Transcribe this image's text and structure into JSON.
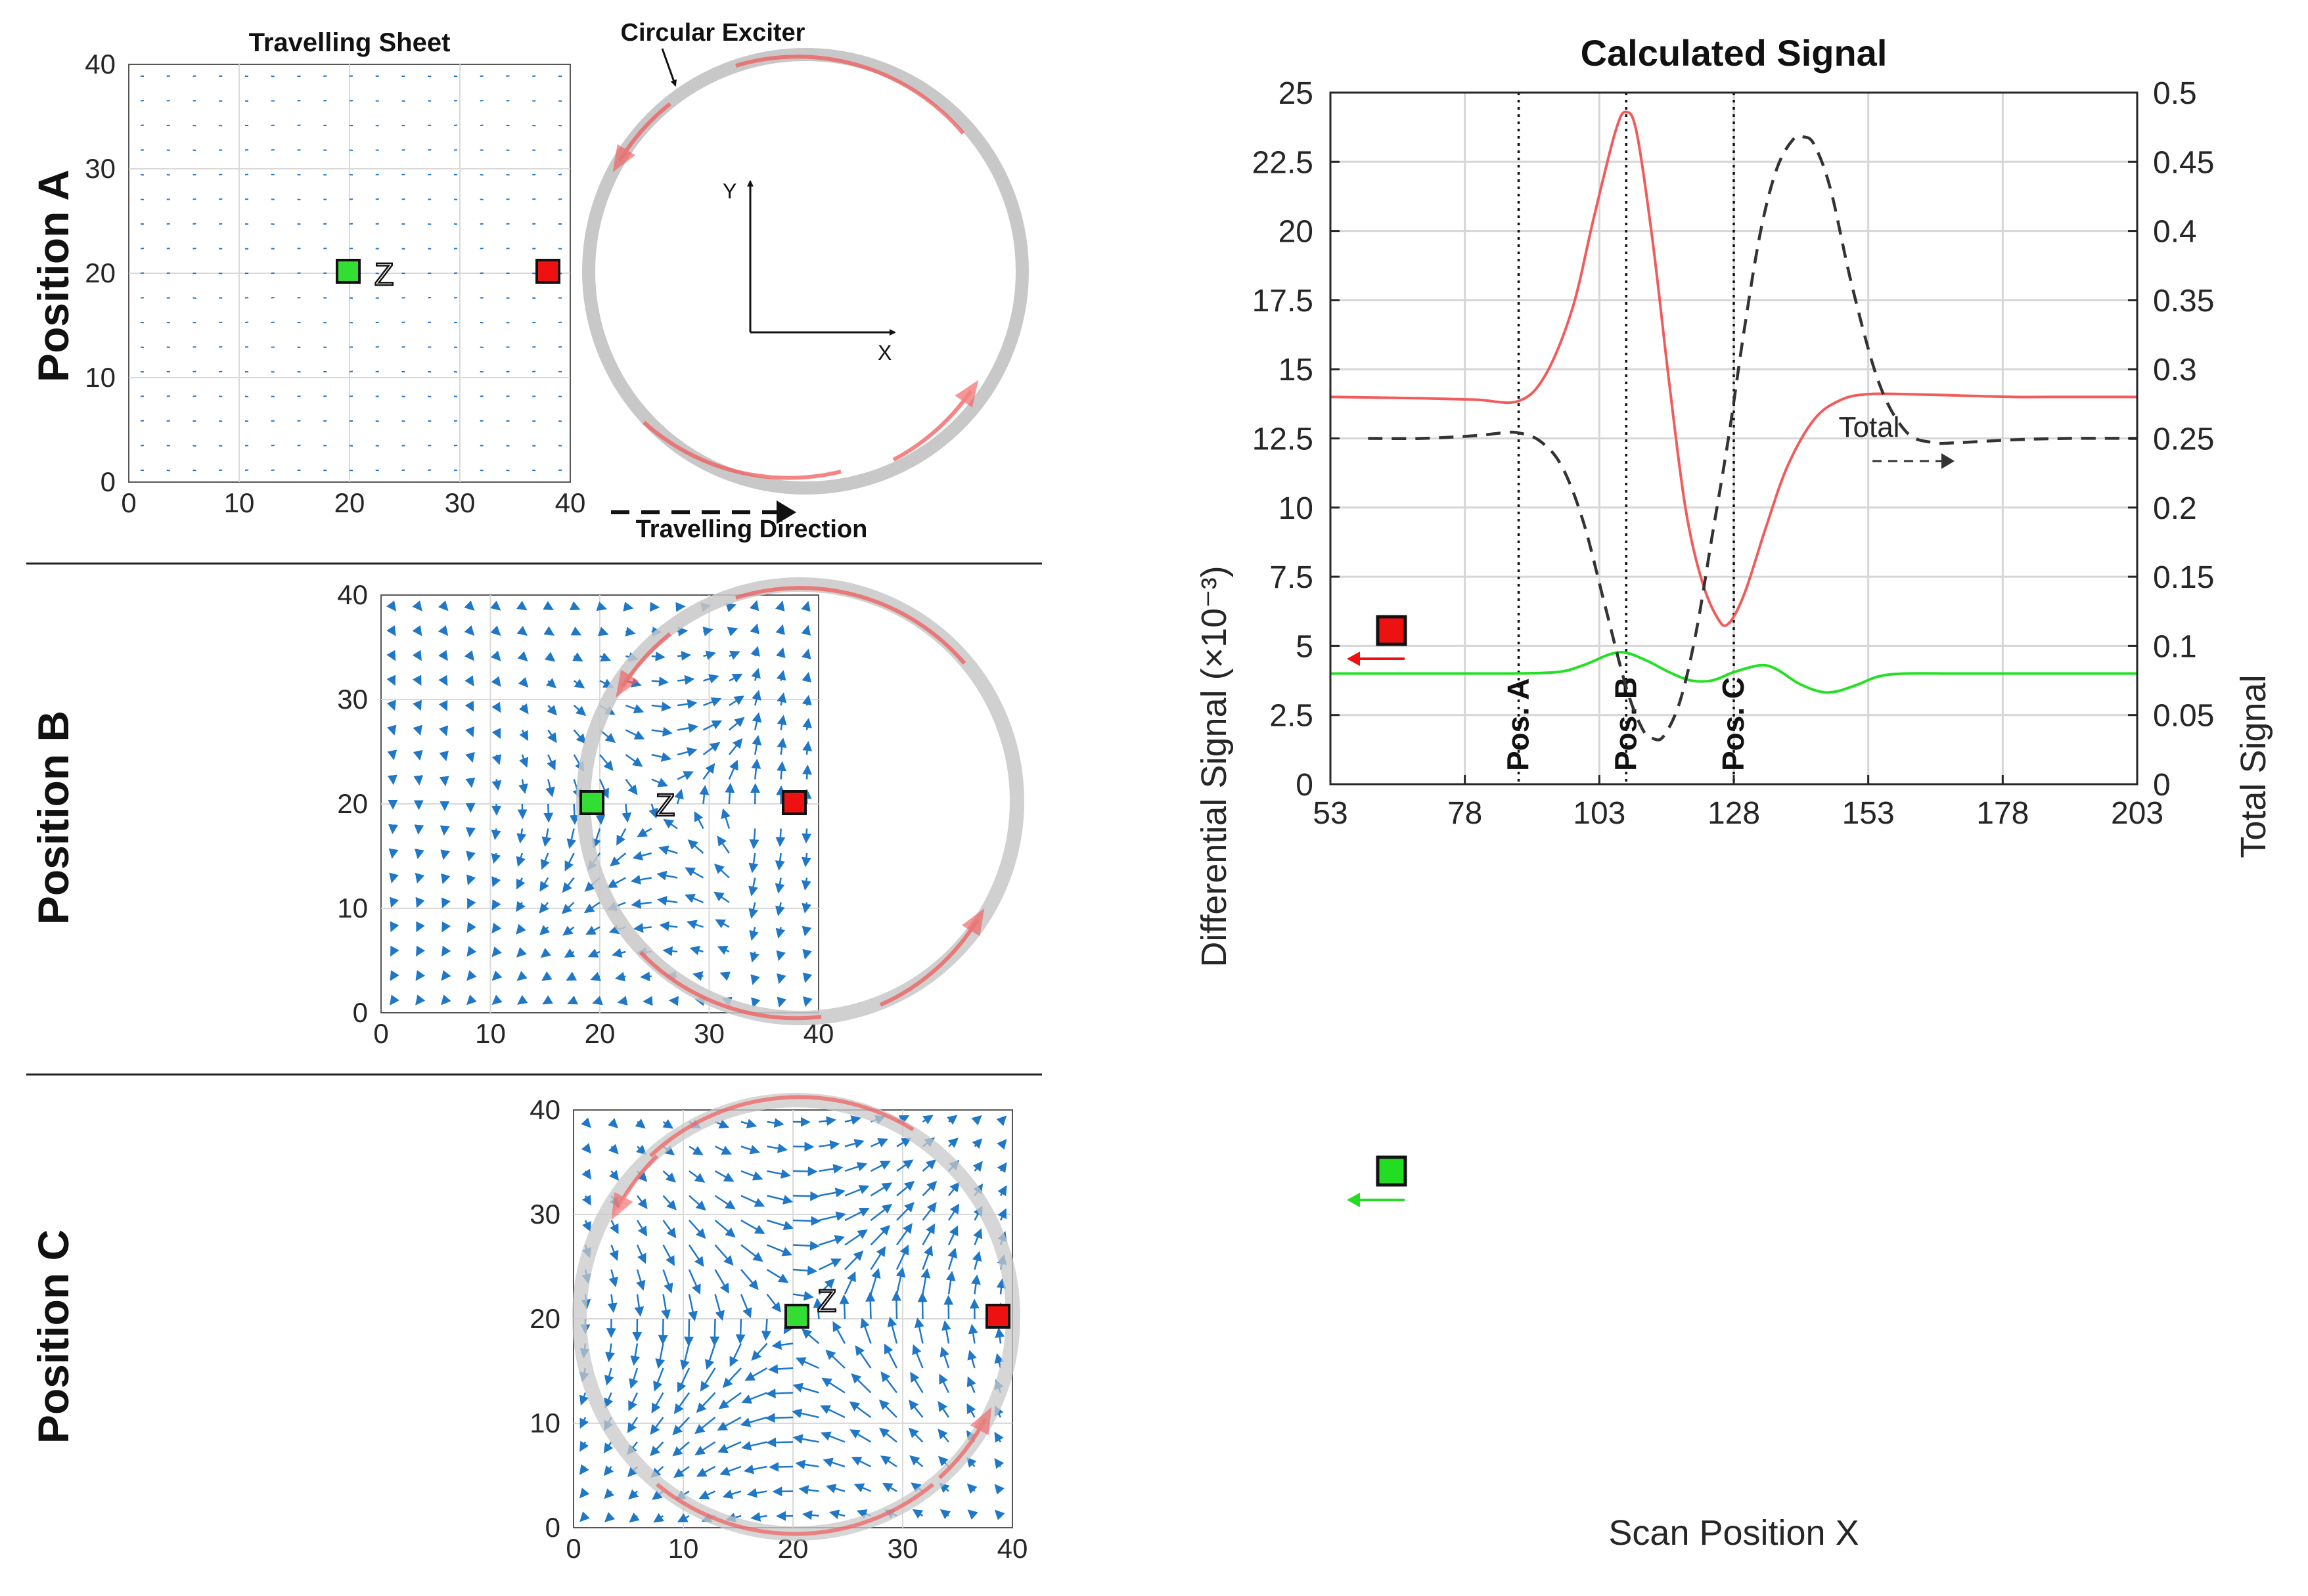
{
  "left_panels": {
    "quiver_title": "Travelling Sheet",
    "exciter_label": "Circular Exciter",
    "axis_y": "Y",
    "axis_x": "X",
    "travel_label": "Travelling Direction",
    "z_label": "Z",
    "position_a": "Position A",
    "position_b": "Position B",
    "position_c": "Position C",
    "ticks": [
      "0",
      "10",
      "20",
      "30",
      "40"
    ]
  },
  "chart_data": {
    "type": "line",
    "title": "Calculated Signal",
    "xlabel": "Scan Position X",
    "ylabel_left": "Differential Signal (×10⁻³)",
    "ylabel_right": "Total Signal",
    "xlim": [
      53,
      203
    ],
    "ylim_left": [
      0,
      25
    ],
    "ylim_right": [
      0,
      0.5
    ],
    "xticks": [
      "53",
      "78",
      "103",
      "128",
      "153",
      "178",
      "203"
    ],
    "yticks_left": [
      "0",
      "2.5",
      "5",
      "7.5",
      "10",
      "12.5",
      "15",
      "17.5",
      "20",
      "22.5",
      "25"
    ],
    "yticks_right": [
      "0",
      "0.05",
      "0.1",
      "0.15",
      "0.2",
      "0.25",
      "0.3",
      "0.35",
      "0.4",
      "0.45",
      "0.5"
    ],
    "grid": true,
    "vlines": [
      {
        "x": 88,
        "label": "Pos. A"
      },
      {
        "x": 108,
        "label": "Pos. B"
      },
      {
        "x": 128,
        "label": "Pos. C"
      }
    ],
    "total_annotation": "Total",
    "series": [
      {
        "name": "Red sensor differential",
        "axis": "left",
        "color": "#f25b5b",
        "style": "solid",
        "x": [
          53,
          70,
          80,
          88,
          93,
          98,
          102,
          106,
          108,
          110,
          113,
          116,
          119,
          122,
          125,
          127,
          130,
          134,
          138,
          143,
          148,
          153,
          160,
          170,
          180,
          190,
          203
        ],
        "y": [
          14.0,
          13.95,
          13.9,
          13.85,
          14.8,
          17.2,
          20.5,
          23.6,
          24.3,
          23.5,
          19.5,
          14.5,
          10.0,
          7.4,
          6.0,
          5.8,
          6.9,
          9.3,
          11.5,
          13.2,
          13.9,
          14.1,
          14.1,
          14.05,
          14.0,
          14.0,
          14.0
        ]
      },
      {
        "name": "Green sensor differential",
        "axis": "left",
        "color": "#22e022",
        "style": "solid",
        "x": [
          53,
          70,
          85,
          95,
          100,
          105,
          108,
          112,
          116,
          120,
          124,
          128,
          133,
          136,
          140,
          144,
          147,
          151,
          155,
          160,
          170,
          185,
          203
        ],
        "y": [
          4.0,
          4.0,
          4.0,
          4.05,
          4.3,
          4.7,
          4.75,
          4.45,
          4.05,
          3.75,
          3.75,
          4.05,
          4.3,
          4.15,
          3.65,
          3.35,
          3.35,
          3.6,
          3.9,
          4.0,
          4.0,
          4.0,
          4.0
        ]
      },
      {
        "name": "Total",
        "axis": "right",
        "color": "#333333",
        "style": "dashed",
        "x": [
          60,
          70,
          80,
          85,
          88,
          92,
          96,
          100,
          104,
          108,
          111,
          113,
          115,
          118,
          121,
          124,
          127,
          130,
          133,
          136,
          139,
          141,
          143,
          146,
          150,
          155,
          160,
          165,
          170,
          180,
          190,
          203
        ],
        "y": [
          0.25,
          0.25,
          0.252,
          0.254,
          0.254,
          0.248,
          0.23,
          0.19,
          0.13,
          0.07,
          0.04,
          0.033,
          0.035,
          0.06,
          0.11,
          0.18,
          0.25,
          0.33,
          0.4,
          0.445,
          0.466,
          0.468,
          0.462,
          0.43,
          0.36,
          0.29,
          0.255,
          0.247,
          0.247,
          0.249,
          0.25,
          0.25
        ]
      }
    ]
  }
}
